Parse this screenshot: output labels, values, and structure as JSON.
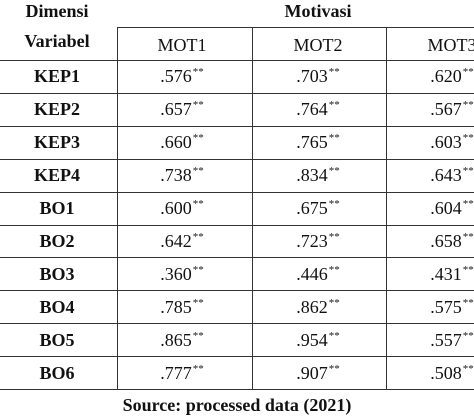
{
  "table": {
    "row_header": [
      "Dimensi",
      "Variabel"
    ],
    "group_header": "Motivasi",
    "columns": [
      "MOT1",
      "MOT2",
      "MOT3"
    ],
    "rows": [
      {
        "label": "KEP1",
        "cells": [
          {
            "value": ".576",
            "sig": "**"
          },
          {
            "value": ".703",
            "sig": "**"
          },
          {
            "value": ".620",
            "sig": "**"
          }
        ]
      },
      {
        "label": "KEP2",
        "cells": [
          {
            "value": ".657",
            "sig": "**"
          },
          {
            "value": ".764",
            "sig": "**"
          },
          {
            "value": ".567",
            "sig": "**"
          }
        ]
      },
      {
        "label": "KEP3",
        "cells": [
          {
            "value": ".660",
            "sig": "**"
          },
          {
            "value": ".765",
            "sig": "**"
          },
          {
            "value": ".603",
            "sig": "**"
          }
        ]
      },
      {
        "label": "KEP4",
        "cells": [
          {
            "value": ".738",
            "sig": "**"
          },
          {
            "value": ".834",
            "sig": "**"
          },
          {
            "value": ".643",
            "sig": "**"
          }
        ]
      },
      {
        "label": "BO1",
        "cells": [
          {
            "value": ".600",
            "sig": "**"
          },
          {
            "value": ".675",
            "sig": "**"
          },
          {
            "value": ".604",
            "sig": "**"
          }
        ]
      },
      {
        "label": "BO2",
        "cells": [
          {
            "value": ".642",
            "sig": "**"
          },
          {
            "value": ".723",
            "sig": "**"
          },
          {
            "value": ".658",
            "sig": "**"
          }
        ]
      },
      {
        "label": "BO3",
        "cells": [
          {
            "value": ".360",
            "sig": "**"
          },
          {
            "value": ".446",
            "sig": "**"
          },
          {
            "value": ".431",
            "sig": "**"
          }
        ]
      },
      {
        "label": "BO4",
        "cells": [
          {
            "value": ".785",
            "sig": "**"
          },
          {
            "value": ".862",
            "sig": "**"
          },
          {
            "value": ".575",
            "sig": "**"
          }
        ]
      },
      {
        "label": "BO5",
        "cells": [
          {
            "value": ".865",
            "sig": "**"
          },
          {
            "value": ".954",
            "sig": "**"
          },
          {
            "value": ".557",
            "sig": "**"
          }
        ]
      },
      {
        "label": "BO6",
        "cells": [
          {
            "value": ".777",
            "sig": "**"
          },
          {
            "value": ".907",
            "sig": "**"
          },
          {
            "value": ".508",
            "sig": "**"
          }
        ]
      }
    ]
  },
  "footer": "Source: processed data (2021)"
}
